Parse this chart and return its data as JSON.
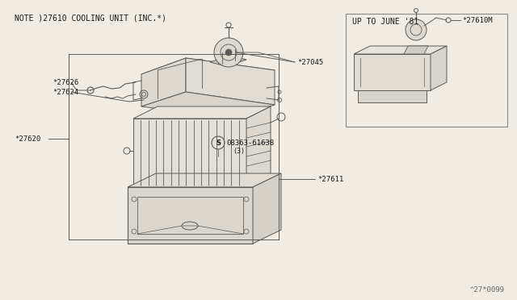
{
  "title_note": "NOTE )27610 COOLING UNIT (INC.*)",
  "inset_title": "UP TO JUNE '81",
  "bg_color": "#f0ece4",
  "line_color": "#5a5a5a",
  "text_color": "#1a1a1a",
  "border_color": "#888888",
  "font_size_note": 7.0,
  "font_size_label": 6.5,
  "diagram_number": "^27*0099"
}
